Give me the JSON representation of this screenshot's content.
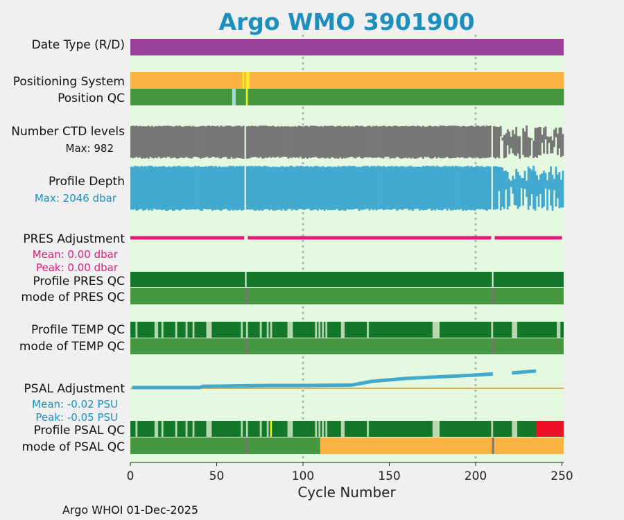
{
  "chart_data": {
    "type": "strip",
    "title": "Argo WMO 3901900",
    "xlabel": "Cycle Number",
    "xlim": [
      0,
      251
    ],
    "xticks": [
      0,
      50,
      100,
      150,
      200,
      250
    ],
    "footer": "Argo WHOI 01-Dec-2025",
    "colors": {
      "background": "#e5f8e0",
      "purple": "#9a3f9a",
      "orange": "#fbb443",
      "yellow": "#f4f120",
      "lightblue": "#a8d5e8",
      "greenQC": "#45983f",
      "darkgreen": "#137629",
      "lightgreenQC": "#b7d7b0",
      "gray": "#777777",
      "blue": "#42a9cf",
      "magenta": "#e5177d",
      "red": "#ef1126",
      "text_blue": "#1c8fbd",
      "text_magenta": "#e5177d"
    },
    "rows": {
      "date_type": {
        "label": "Date Type (R/D)",
        "value": "D"
      },
      "positioning_system": {
        "label": "Positioning System",
        "color_segments": [
          [
            0,
            65,
            "orange"
          ],
          [
            65,
            66,
            "yellow"
          ],
          [
            66,
            67,
            "orange"
          ],
          [
            67,
            69,
            "yellow"
          ],
          [
            69,
            251,
            "orange"
          ]
        ]
      },
      "position_qc": {
        "label": "Position QC",
        "color_segments": [
          [
            0,
            59,
            "greenQC"
          ],
          [
            59,
            61,
            "lightblue"
          ],
          [
            61,
            67,
            "greenQC"
          ],
          [
            67,
            68,
            "yellow"
          ],
          [
            68,
            251,
            "greenQC"
          ]
        ]
      },
      "ctd_levels": {
        "label": "Number CTD levels",
        "sublabel": "Max: 982",
        "max": 982,
        "gaps": [
          67,
          210
        ]
      },
      "profile_depth": {
        "label": "Profile Depth",
        "sublabel": "Max: 2046 dbar",
        "max_dbar": 2046,
        "gaps": [
          67,
          210
        ]
      },
      "pres_adjustment": {
        "label": "PRES Adjustment",
        "mean": "Mean: 0.00 dbar",
        "peak": "Peak: 0.00 dbar"
      },
      "profile_pres_qc": {
        "label": "Profile PRES QC",
        "gaps": [
          67,
          210
        ]
      },
      "mode_pres_qc": {
        "label": "mode of PRES QC",
        "gray_marks": [
          67,
          210
        ]
      },
      "profile_temp_qc": {
        "label": "Profile TEMP QC",
        "light_cycles": [
          4,
          15,
          16,
          19,
          27,
          33,
          37,
          45,
          46,
          47,
          65,
          68,
          76,
          80,
          82,
          92,
          93,
          94,
          108,
          110,
          112,
          114,
          123,
          124,
          138,
          176,
          177,
          178,
          179,
          210,
          222,
          223,
          224,
          248,
          249
        ]
      },
      "mode_temp_qc": {
        "label": "mode of TEMP QC",
        "gray_marks": [
          67,
          210
        ]
      },
      "psal_adjustment": {
        "label": "PSAL Adjustment",
        "mean": "Mean: -0.02 PSU",
        "peak": "Peak: -0.05 PSU",
        "points": [
          [
            1,
            -0.0
          ],
          [
            20,
            0.0
          ],
          [
            40,
            0.0
          ],
          [
            42,
            -0.003
          ],
          [
            60,
            -0.004
          ],
          [
            80,
            -0.005
          ],
          [
            100,
            -0.005
          ],
          [
            128,
            -0.006
          ],
          [
            140,
            -0.015
          ],
          [
            160,
            -0.022
          ],
          [
            180,
            -0.026
          ],
          [
            200,
            -0.03
          ],
          [
            210,
            -0.033
          ],
          [
            221,
            -0.035
          ],
          [
            235,
            -0.04
          ]
        ]
      },
      "profile_psal_qc": {
        "label": "Profile PSAL QC",
        "light_cycles": [
          4,
          15,
          16,
          19,
          27,
          33,
          37,
          45,
          46,
          47,
          65,
          68,
          76,
          80,
          92,
          93,
          94,
          108,
          110,
          112,
          114,
          123,
          124,
          138,
          176,
          177,
          178,
          179,
          210,
          222,
          223,
          224
        ],
        "yellow_cycles": [
          81
        ],
        "red_from": 235
      },
      "mode_psal_qc": {
        "label": "mode of PSAL QC",
        "orange_from": 110,
        "gray_marks": [
          67,
          210
        ]
      }
    }
  }
}
